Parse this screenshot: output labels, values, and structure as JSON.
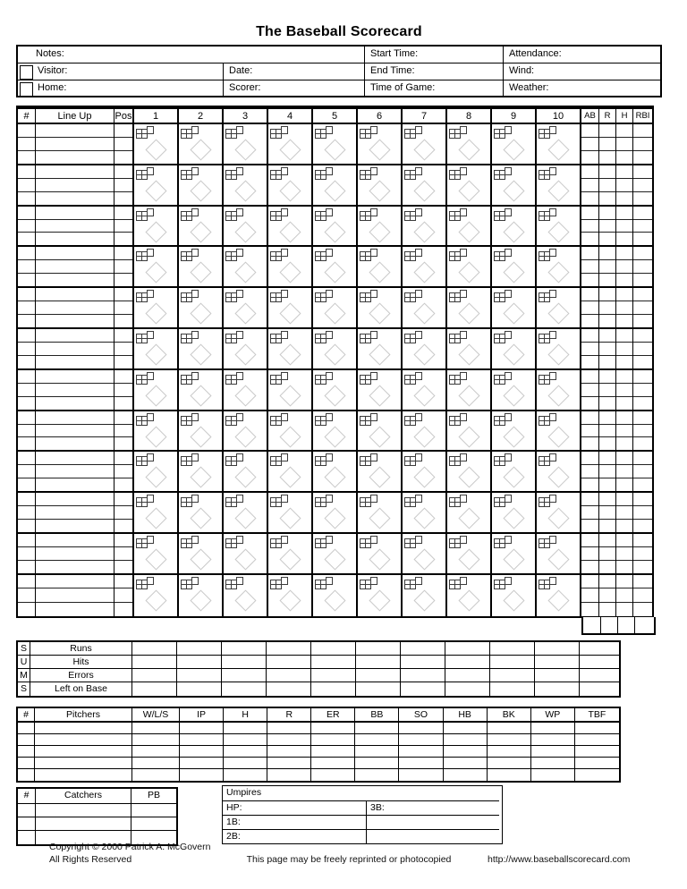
{
  "title": "The Baseball Scorecard",
  "colors": {
    "line": "#000000",
    "diamond": "#c9c9c9",
    "pitch_grid": "#3c3c3c"
  },
  "game_info": {
    "notes_label": "Notes:",
    "start_time_label": "Start Time:",
    "attendance_label": "Attendance:",
    "visitor_label": "Visitor:",
    "date_label": "Date:",
    "end_time_label": "End Time:",
    "wind_label": "Wind:",
    "home_label": "Home:",
    "scorer_label": "Scorer:",
    "time_of_game_label": "Time of Game:",
    "weather_label": "Weather:"
  },
  "lineup_grid": {
    "number_header": "#",
    "lineup_header": "Line Up",
    "pos_header": "Pos",
    "inning_headers": [
      "1",
      "2",
      "3",
      "4",
      "5",
      "6",
      "7",
      "8",
      "9",
      "10"
    ],
    "stat_headers": [
      "AB",
      "R",
      "H",
      "RBI"
    ],
    "batter_rows": 12,
    "subrows_per_batter": 3,
    "icons": {
      "pitch_count": "pitch-count-grid-icon",
      "basepath": "diamond-icon"
    }
  },
  "sums": {
    "vertical_letters": [
      "S",
      "U",
      "M",
      "S"
    ],
    "row_labels": [
      "Runs",
      "Hits",
      "Errors",
      "Left on Base"
    ],
    "inning_columns": 10,
    "total_columns": 1
  },
  "pitchers": {
    "headers": [
      "#",
      "Pitchers",
      "W/L/S",
      "IP",
      "H",
      "R",
      "ER",
      "BB",
      "SO",
      "HB",
      "BK",
      "WP",
      "TBF"
    ],
    "empty_rows": 5
  },
  "catchers": {
    "headers": [
      "#",
      "Catchers",
      "PB"
    ],
    "empty_rows": 3
  },
  "umpires": {
    "title": "Umpires",
    "hp_label": "HP:",
    "third_base_label": "3B:",
    "first_base_label": "1B:",
    "second_base_label": "2B:"
  },
  "footer": {
    "copyright": "Copyright © 2000 Patrick A. McGovern",
    "rights": "All Rights Reserved",
    "reprint_notice": "This page may be freely reprinted or photocopied",
    "url": "http://www.baseballscorecard.com"
  }
}
